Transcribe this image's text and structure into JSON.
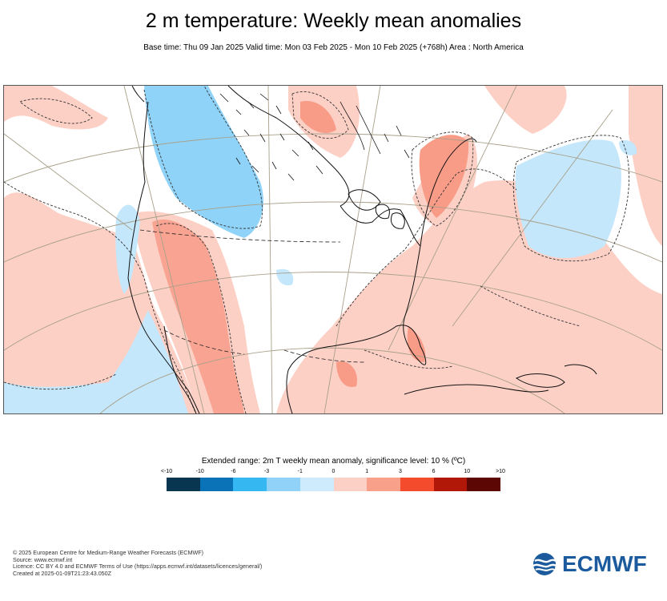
{
  "header": {
    "title": "2 m temperature: Weekly mean anomalies",
    "subtitle": "Base time: Thu 09 Jan 2025 Valid time: Mon 03 Feb 2025 - Mon 10 Feb 2025 (+768h) Area : North America"
  },
  "map": {
    "region": "North America",
    "anomaly_colors": {
      "warm_light": "#fdd0c6",
      "warm_mid": "#f89c88",
      "cold_light": "#c4e7fb",
      "cold_mid": "#8fd3f9"
    }
  },
  "legend": {
    "title": "Extended range: 2m T weekly mean anomaly, significance level: 10 % (ºC)",
    "ticks": [
      "<-10",
      "-10",
      "-6",
      "-3",
      "-1",
      "0",
      "1",
      "3",
      "6",
      "10",
      ">10"
    ],
    "colors": [
      "#08354f",
      "#0a72b6",
      "#35b8f1",
      "#91d2f9",
      "#cdebfc",
      "#ffffff",
      "#fdd0c6",
      "#f9a08a",
      "#f34b2b",
      "#b21808",
      "#5c0703"
    ]
  },
  "footer": {
    "line1": "© 2025 European Centre for Medium-Range Weather Forecasts (ECMWF)",
    "line2": "Source: www.ecmwf.int",
    "line3": "Licence: CC BY 4.0 and ECMWF Terms of Use (https://apps.ecmwf.int/datasets/licences/general/)",
    "line4": "Created at 2025-01-09T21:23:43.050Z"
  },
  "logo": {
    "text": "ECMWF",
    "icon": "ecmwf-logo-icon",
    "color": "#1b5a9c"
  }
}
